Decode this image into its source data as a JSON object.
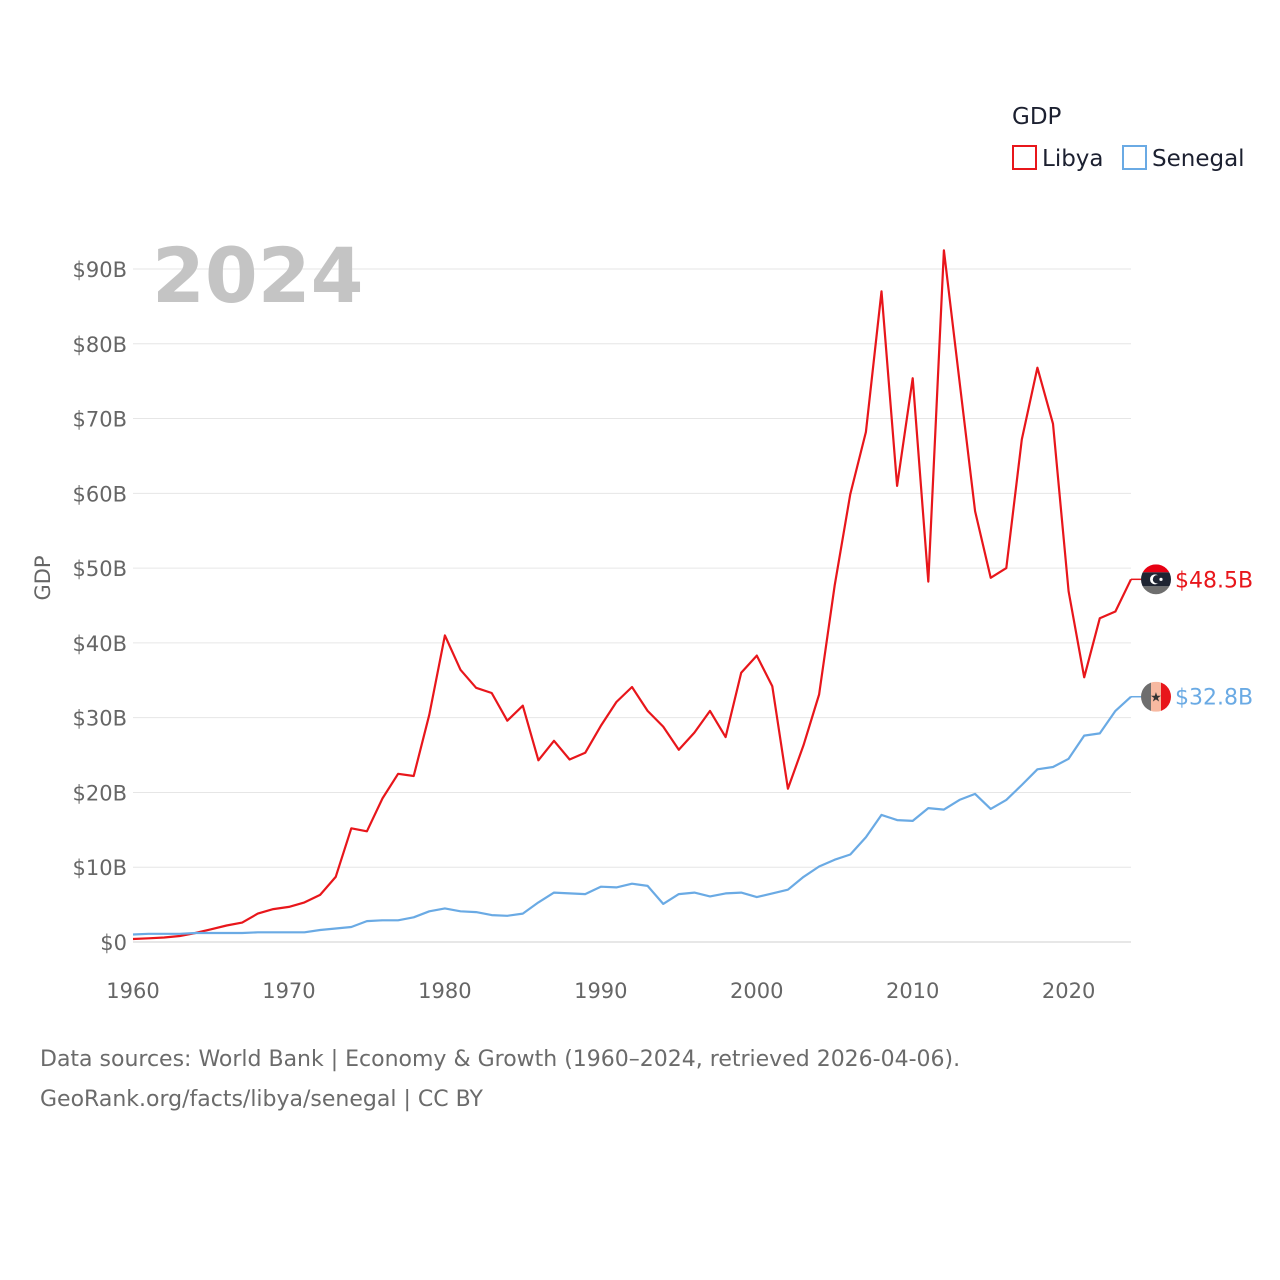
{
  "chart_data": {
    "type": "line",
    "title": "GDP",
    "xlabel": "",
    "ylabel": "GDP",
    "year_label": "2024",
    "xlim": [
      1960,
      2024
    ],
    "ylim": [
      0,
      95
    ],
    "x_ticks": [
      1960,
      1970,
      1980,
      1990,
      2000,
      2010,
      2020
    ],
    "y_ticks": [
      0,
      10,
      20,
      30,
      40,
      50,
      60,
      70,
      80,
      90
    ],
    "y_tick_labels": [
      "$0",
      "$10B",
      "$20B",
      "$30B",
      "$40B",
      "$50B",
      "$60B",
      "$70B",
      "$80B",
      "$90B"
    ],
    "x_tick_labels": [
      "1960",
      "1970",
      "1980",
      "1990",
      "2000",
      "2010",
      "2020"
    ],
    "grid": true,
    "legend_title": "GDP",
    "legend_position": "top-right",
    "x": [
      1960,
      1961,
      1962,
      1963,
      1964,
      1965,
      1966,
      1967,
      1968,
      1969,
      1970,
      1971,
      1972,
      1973,
      1974,
      1975,
      1976,
      1977,
      1978,
      1979,
      1980,
      1981,
      1982,
      1983,
      1984,
      1985,
      1986,
      1987,
      1988,
      1989,
      1990,
      1991,
      1992,
      1993,
      1994,
      1995,
      1996,
      1997,
      1998,
      1999,
      2000,
      2001,
      2002,
      2003,
      2004,
      2005,
      2006,
      2007,
      2008,
      2009,
      2010,
      2011,
      2012,
      2013,
      2014,
      2015,
      2016,
      2017,
      2018,
      2019,
      2020,
      2021,
      2022,
      2023,
      2024
    ],
    "series": [
      {
        "name": "Libya",
        "color": "#e8161b",
        "end_label": "$48.5B",
        "flag": "libya-flag-icon",
        "values": [
          0.4,
          0.5,
          0.6,
          0.8,
          1.2,
          1.7,
          2.2,
          2.6,
          3.8,
          4.4,
          4.7,
          5.3,
          6.3,
          8.7,
          15.2,
          14.8,
          19.2,
          22.5,
          22.2,
          30.4,
          41.0,
          36.4,
          34.0,
          33.3,
          29.6,
          31.6,
          24.3,
          26.9,
          24.4,
          25.3,
          28.9,
          32.1,
          34.1,
          30.9,
          28.8,
          25.7,
          28.0,
          30.9,
          27.4,
          36.0,
          38.3,
          34.2,
          20.5,
          26.3,
          33.1,
          47.7,
          59.9,
          68.2,
          87.0,
          61.0,
          75.4,
          48.2,
          92.5,
          75.0,
          57.6,
          48.7,
          50.0,
          67.2,
          76.8,
          69.3,
          46.9,
          35.4,
          43.3,
          44.2,
          48.5
        ]
      },
      {
        "name": "Senegal",
        "color": "#6aaae4",
        "end_label": "$32.8B",
        "flag": "senegal-flag-icon",
        "values": [
          1.0,
          1.1,
          1.1,
          1.1,
          1.2,
          1.2,
          1.2,
          1.2,
          1.3,
          1.3,
          1.3,
          1.3,
          1.6,
          1.8,
          2.0,
          2.8,
          2.9,
          2.9,
          3.3,
          4.1,
          4.5,
          4.1,
          4.0,
          3.6,
          3.5,
          3.8,
          5.3,
          6.6,
          6.5,
          6.4,
          7.4,
          7.3,
          7.8,
          7.5,
          5.1,
          6.4,
          6.6,
          6.1,
          6.5,
          6.6,
          6.0,
          6.5,
          7.0,
          8.7,
          10.1,
          11.0,
          11.7,
          14.0,
          17.0,
          16.3,
          16.2,
          17.9,
          17.7,
          19.0,
          19.8,
          17.8,
          19.0,
          21.0,
          23.1,
          23.4,
          24.5,
          27.6,
          27.9,
          30.9,
          32.8
        ]
      }
    ]
  },
  "source": {
    "line1": "Data sources: World Bank | Economy & Growth (1960–2024, retrieved 2026-04-06).",
    "line2": "GeoRank.org/facts/libya/senegal | CC BY"
  }
}
